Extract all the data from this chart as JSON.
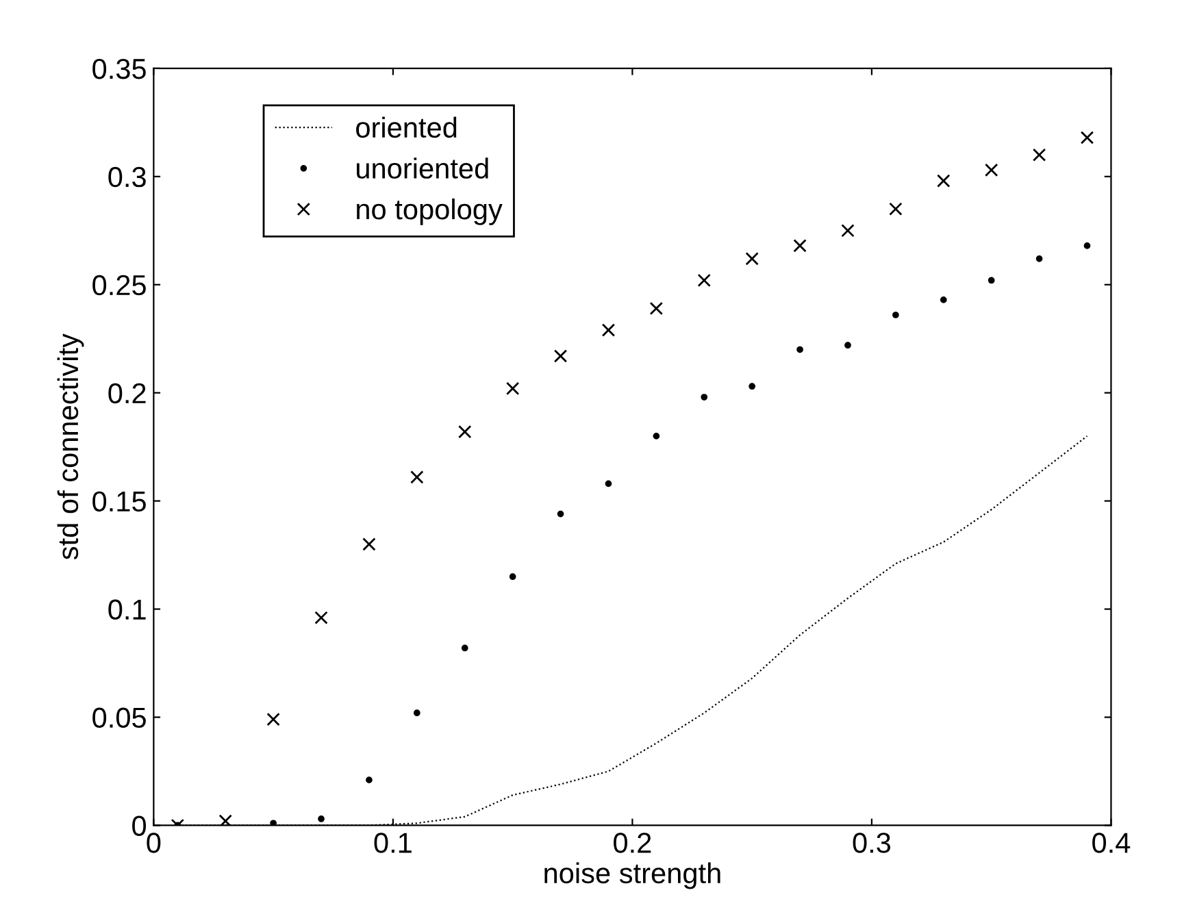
{
  "chart_data": {
    "type": "line",
    "xlabel": "noise strength",
    "ylabel": "std of connectivity",
    "x": [
      0.01,
      0.03,
      0.05,
      0.07,
      0.09,
      0.11,
      0.13,
      0.15,
      0.17,
      0.19,
      0.21,
      0.23,
      0.25,
      0.27,
      0.29,
      0.31,
      0.33,
      0.35,
      0.37,
      0.39
    ],
    "xlim": [
      0,
      0.4
    ],
    "xticks": [
      0,
      0.1,
      0.2,
      0.3,
      0.4
    ],
    "ylim": [
      0,
      0.35
    ],
    "yticks": [
      0,
      0.05,
      0.1,
      0.15,
      0.2,
      0.25,
      0.3,
      0.35
    ],
    "grid": false,
    "legend": "top left",
    "series": [
      {
        "name": "oriented",
        "color": "#000000",
        "line_style": "dotted",
        "marker": "none",
        "values": [
          0,
          0,
          0,
          0,
          0,
          0.001,
          0.004,
          0.014,
          0.019,
          0.025,
          0.038,
          0.052,
          0.068,
          0.088,
          0.105,
          0.121,
          0.131,
          0.146,
          0.163,
          0.18
        ]
      },
      {
        "name": "unoriented",
        "color": "#000000",
        "type": "scatter",
        "marker": "circle",
        "values": [
          0,
          null,
          0.001,
          0.003,
          0.021,
          0.052,
          0.082,
          0.115,
          0.144,
          0.158,
          0.18,
          0.198,
          0.203,
          0.22,
          0.222,
          0.236,
          0.243,
          0.252,
          0.262,
          0.268
        ]
      },
      {
        "name": "no topology",
        "color": "#000000",
        "type": "scatter",
        "marker": "cross",
        "values": [
          0,
          0.002,
          0.049,
          0.096,
          0.13,
          0.161,
          0.182,
          0.202,
          0.217,
          0.229,
          0.239,
          0.252,
          0.262,
          0.268,
          0.275,
          0.285,
          0.298,
          0.303,
          0.31,
          0.318
        ]
      }
    ]
  }
}
